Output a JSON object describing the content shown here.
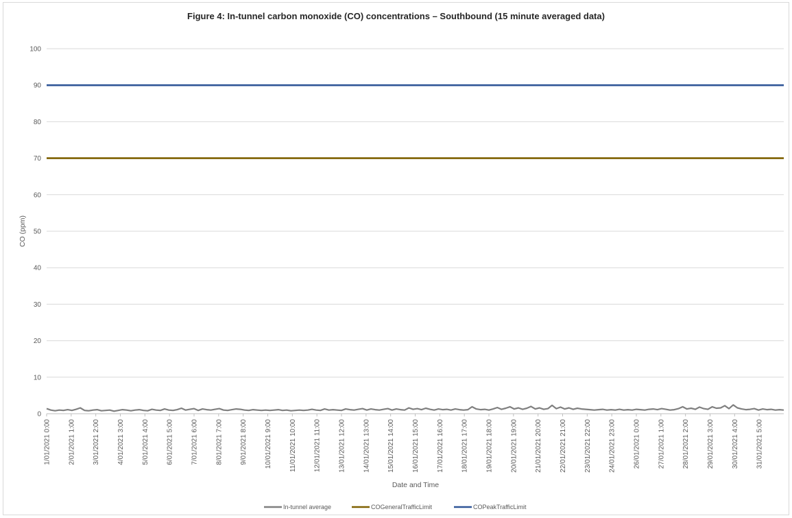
{
  "chart_data": {
    "type": "line",
    "title": "Figure 4: In-tunnel carbon monoxide (CO) concentrations – Southbound (15 minute averaged data)",
    "xlabel": "Date and Time",
    "ylabel": "CO (ppm)",
    "ylim": [
      0,
      100
    ],
    "y_ticks": [
      0,
      10,
      20,
      30,
      40,
      50,
      60,
      70,
      80,
      90,
      100
    ],
    "x_tick_labels": [
      "1/01/2021 0:00",
      "2/01/2021 1:00",
      "3/01/2021 2:00",
      "4/01/2021 3:00",
      "5/01/2021 4:00",
      "6/01/2021 5:00",
      "7/01/2021 6:00",
      "8/01/2021 7:00",
      "9/01/2021 8:00",
      "10/01/2021 9:00",
      "11/01/2021 10:00",
      "12/01/2021 11:00",
      "13/01/2021 12:00",
      "14/01/2021 13:00",
      "15/01/2021 14:00",
      "16/01/2021 15:00",
      "17/01/2021 16:00",
      "18/01/2021 17:00",
      "19/01/2021 18:00",
      "20/01/2021 19:00",
      "21/01/2021 20:00",
      "22/01/2021 21:00",
      "23/01/2021 22:00",
      "24/01/2021 23:00",
      "26/01/2021 0:00",
      "27/01/2021 1:00",
      "28/01/2021 2:00",
      "29/01/2021 3:00",
      "30/01/2021 4:00",
      "31/01/2021 5:00"
    ],
    "grid": true,
    "legend_position": "bottom",
    "series": [
      {
        "name": "In-tunnel average",
        "color": "#7f7f7f",
        "values": [
          1.4,
          1.0,
          0.8,
          1.0,
          0.9,
          1.1,
          0.9,
          1.2,
          1.6,
          0.9,
          0.8,
          1.0,
          1.1,
          0.8,
          0.9,
          1.0,
          0.7,
          0.9,
          1.1,
          1.0,
          0.8,
          1.0,
          1.1,
          0.9,
          0.8,
          1.2,
          1.0,
          0.9,
          1.3,
          1.0,
          0.9,
          1.1,
          1.5,
          1.0,
          1.2,
          1.4,
          0.9,
          1.3,
          1.1,
          1.0,
          1.2,
          1.4,
          1.0,
          0.9,
          1.1,
          1.3,
          1.2,
          1.0,
          0.9,
          1.1,
          1.0,
          0.9,
          1.0,
          0.9,
          1.0,
          1.1,
          0.9,
          1.0,
          0.8,
          0.9,
          1.0,
          0.9,
          1.0,
          1.2,
          1.0,
          0.9,
          1.3,
          1.0,
          1.1,
          1.0,
          0.9,
          1.3,
          1.1,
          1.0,
          1.2,
          1.4,
          1.0,
          1.3,
          1.1,
          1.0,
          1.2,
          1.4,
          1.0,
          1.3,
          1.1,
          1.0,
          1.6,
          1.2,
          1.4,
          1.1,
          1.5,
          1.2,
          1.0,
          1.3,
          1.1,
          1.2,
          1.0,
          1.3,
          1.1,
          1.0,
          1.1,
          1.9,
          1.3,
          1.1,
          1.2,
          1.0,
          1.3,
          1.7,
          1.2,
          1.5,
          1.9,
          1.3,
          1.6,
          1.2,
          1.5,
          2.0,
          1.3,
          1.6,
          1.2,
          1.4,
          2.3,
          1.4,
          1.8,
          1.3,
          1.6,
          1.2,
          1.5,
          1.3,
          1.2,
          1.1,
          1.0,
          1.1,
          1.2,
          1.0,
          1.1,
          1.0,
          1.2,
          1.0,
          1.1,
          1.0,
          1.2,
          1.1,
          1.0,
          1.2,
          1.3,
          1.1,
          1.4,
          1.2,
          1.0,
          1.1,
          1.4,
          1.9,
          1.3,
          1.5,
          1.2,
          1.8,
          1.4,
          1.2,
          1.9,
          1.5,
          1.6,
          2.2,
          1.4,
          2.4,
          1.6,
          1.3,
          1.1,
          1.2,
          1.4,
          1.0,
          1.3,
          1.1,
          1.2,
          1.0,
          1.1,
          1.0
        ]
      },
      {
        "name": "COGeneralTrafficLimit",
        "color": "#7f6000",
        "constant": 70
      },
      {
        "name": "COPeakTrafficLimit",
        "color": "#2f5597",
        "constant": 90
      }
    ]
  }
}
